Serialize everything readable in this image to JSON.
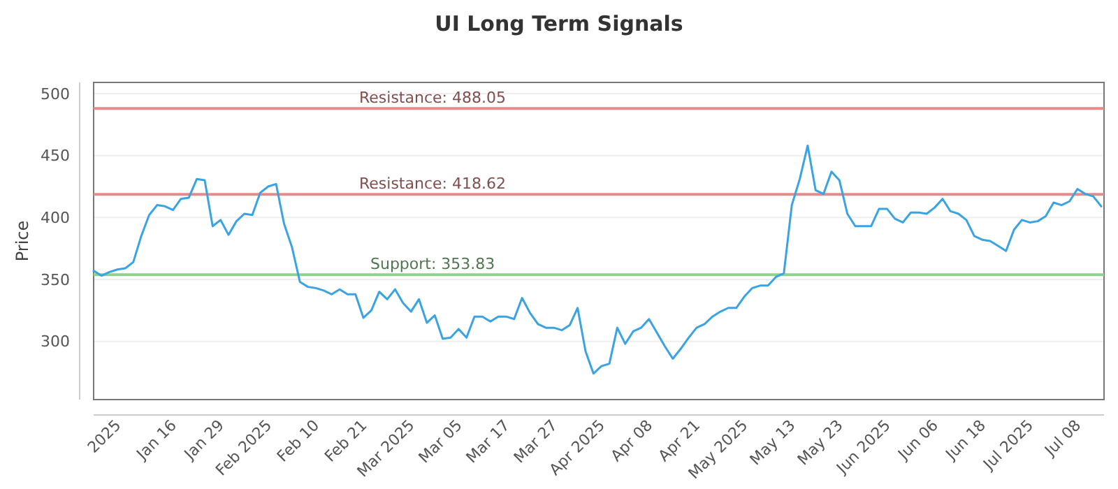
{
  "chart_data": {
    "type": "line",
    "title": "UI Long Term Signals",
    "ylabel": "Price",
    "categories": [
      null,
      null,
      null,
      "2025",
      null,
      null,
      null,
      null,
      null,
      null,
      "Jan 16",
      null,
      null,
      null,
      null,
      null,
      "Jan 29",
      null,
      null,
      null,
      null,
      null,
      "Feb 2025",
      null,
      null,
      null,
      null,
      null,
      "Feb 10",
      null,
      null,
      null,
      null,
      null,
      "Feb 21",
      null,
      null,
      null,
      null,
      null,
      "Mar 2025",
      null,
      null,
      null,
      null,
      null,
      "Mar 05",
      null,
      null,
      null,
      null,
      null,
      "Mar 17",
      null,
      null,
      null,
      null,
      null,
      "Mar 27",
      null,
      null,
      null,
      null,
      null,
      "Apr 2025",
      null,
      null,
      null,
      null,
      null,
      "Apr 08",
      null,
      null,
      null,
      null,
      null,
      "Apr 21",
      null,
      null,
      null,
      null,
      null,
      "May 2025",
      null,
      null,
      null,
      null,
      null,
      "May 13",
      null,
      null,
      null,
      null,
      null,
      "May 23",
      null,
      null,
      null,
      null,
      null,
      "Jun 2025",
      null,
      null,
      null,
      null,
      null,
      "Jun 06",
      null,
      null,
      null,
      null,
      null,
      "Jun 18",
      null,
      null,
      null,
      null,
      null,
      "Jul 2025",
      null,
      null,
      null,
      null,
      null,
      "Jul 08",
      null,
      null,
      null
    ],
    "series": [
      {
        "color": "#3aa3e3",
        "values": [
          357,
          353,
          356,
          358,
          359,
          364,
          385,
          402,
          410,
          409,
          406,
          415,
          416,
          431,
          430,
          393,
          398,
          386,
          397,
          403,
          402,
          420,
          425,
          427,
          395,
          376,
          348,
          344,
          343,
          341,
          338,
          342,
          338,
          338,
          319,
          325,
          340,
          334,
          342,
          331,
          324,
          334,
          315,
          321,
          302,
          303,
          310,
          303,
          320,
          320,
          316,
          320,
          320,
          318,
          335,
          323,
          314,
          311,
          311,
          309,
          313,
          327,
          292,
          274,
          280,
          282,
          311,
          298,
          308,
          311,
          318,
          307,
          296,
          286,
          294,
          303,
          311,
          314,
          320,
          324,
          327,
          327,
          336,
          343,
          345,
          345,
          352,
          355,
          410,
          431,
          458,
          422,
          419,
          437,
          430,
          403,
          393,
          393,
          393,
          407,
          407,
          399,
          396,
          404,
          404,
          403,
          408,
          415,
          405,
          403,
          398,
          385,
          382,
          381,
          377,
          373,
          390,
          398,
          396,
          397,
          401,
          412,
          410,
          413,
          423,
          419,
          417,
          409
        ]
      }
    ],
    "ylim": [
      253,
      509
    ],
    "yticks": [
      300,
      350,
      400,
      450,
      500
    ],
    "grid": "y",
    "ref_lines": [
      {
        "axis": "y",
        "value": 488.05,
        "label": "Resistance: 488.05",
        "color": "#e88a8a"
      },
      {
        "axis": "y",
        "value": 418.62,
        "label": "Resistance: 418.62",
        "color": "#e88a8a"
      },
      {
        "axis": "y",
        "value": 353.83,
        "label": "Support: 353.83",
        "color": "#8fd18f"
      }
    ]
  }
}
